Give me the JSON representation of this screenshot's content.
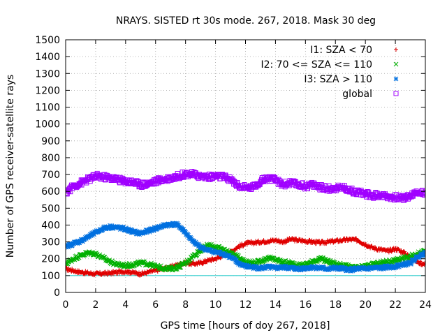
{
  "chart_data": {
    "type": "scatter",
    "title": "NRAYS. SISTED rt 30s mode. 267, 2018. Mask 30 deg",
    "xlabel": "GPS time [hours of doy 267, 2018]",
    "ylabel": "Number of GPS receiver-satellite rays",
    "xlim": [
      0,
      24
    ],
    "ylim": [
      0,
      1500
    ],
    "x_ticks": [
      "0",
      "2",
      "4",
      "6",
      "8",
      "10",
      "12",
      "14",
      "16",
      "18",
      "20",
      "22",
      "24"
    ],
    "y_ticks": [
      "0",
      "100",
      "200",
      "300",
      "400",
      "500",
      "600",
      "700",
      "800",
      "900",
      "1000",
      "1100",
      "1200",
      "1300",
      "1400",
      "1500"
    ],
    "grid": true,
    "legend_position": "top-right",
    "reference_line": {
      "y": 100,
      "color": "#00c0c0"
    },
    "series": [
      {
        "name": "I1: SZA < 70",
        "marker": "+",
        "color": "#e00000",
        "x": [
          0,
          0.5,
          1,
          1.5,
          2,
          2.5,
          3,
          3.5,
          4,
          4.5,
          5,
          5.5,
          6,
          6.5,
          7,
          7.5,
          8,
          8.5,
          9,
          9.5,
          10,
          10.5,
          11,
          11.5,
          12,
          12.5,
          13,
          13.5,
          14,
          14.5,
          15,
          15.5,
          16,
          16.5,
          17,
          17.5,
          18,
          18.5,
          19,
          19.5,
          20,
          20.5,
          21,
          21.5,
          22,
          22.5,
          23,
          23.5,
          24
        ],
        "y": [
          140,
          130,
          120,
          115,
          110,
          112,
          115,
          120,
          125,
          118,
          110,
          120,
          130,
          140,
          150,
          165,
          175,
          170,
          175,
          190,
          200,
          220,
          240,
          270,
          290,
          295,
          300,
          305,
          310,
          300,
          315,
          310,
          305,
          300,
          295,
          300,
          305,
          310,
          315,
          310,
          285,
          265,
          255,
          245,
          260,
          240,
          210,
          180,
          165
        ]
      },
      {
        "name": "I2: 70 <= SZA <= 110",
        "marker": "x",
        "color": "#00b000",
        "x": [
          0,
          0.5,
          1,
          1.5,
          2,
          2.5,
          3,
          3.5,
          4,
          4.5,
          5,
          5.5,
          6,
          6.5,
          7,
          7.5,
          8,
          8.5,
          9,
          9.5,
          10,
          10.5,
          11,
          11.5,
          12,
          12.5,
          13,
          13.5,
          14,
          14.5,
          15,
          15.5,
          16,
          16.5,
          17,
          17.5,
          18,
          18.5,
          19,
          19.5,
          20,
          20.5,
          21,
          21.5,
          22,
          22.5,
          23,
          23.5,
          24
        ],
        "y": [
          170,
          200,
          220,
          235,
          230,
          205,
          180,
          165,
          160,
          165,
          175,
          170,
          155,
          145,
          140,
          150,
          175,
          215,
          250,
          280,
          270,
          255,
          235,
          210,
          185,
          175,
          185,
          205,
          195,
          180,
          175,
          160,
          165,
          185,
          200,
          185,
          170,
          160,
          150,
          145,
          155,
          165,
          175,
          185,
          190,
          200,
          215,
          230,
          245
        ]
      },
      {
        "name": "I3: SZA > 110",
        "marker": "*",
        "color": "#0070e0",
        "x": [
          0,
          0.5,
          1,
          1.5,
          2,
          2.5,
          3,
          3.5,
          4,
          4.5,
          5,
          5.5,
          6,
          6.5,
          7,
          7.5,
          8,
          8.5,
          9,
          9.5,
          10,
          10.5,
          11,
          11.5,
          12,
          12.5,
          13,
          13.5,
          14,
          14.5,
          15,
          15.5,
          16,
          16.5,
          17,
          17.5,
          18,
          18.5,
          19,
          19.5,
          20,
          20.5,
          21,
          21.5,
          22,
          22.5,
          23,
          23.5,
          24
        ],
        "y": [
          270,
          290,
          305,
          330,
          355,
          380,
          390,
          385,
          375,
          360,
          350,
          365,
          380,
          395,
          405,
          400,
          355,
          300,
          270,
          250,
          240,
          230,
          210,
          175,
          155,
          150,
          145,
          150,
          145,
          150,
          145,
          140,
          145,
          150,
          145,
          140,
          145,
          140,
          135,
          140,
          140,
          145,
          145,
          150,
          155,
          165,
          175,
          210,
          240
        ]
      },
      {
        "name": "global",
        "marker": "open-square",
        "color": "#a000ff",
        "x": [
          0,
          0.5,
          1,
          1.5,
          2,
          2.5,
          3,
          3.5,
          4,
          4.5,
          5,
          5.5,
          6,
          6.5,
          7,
          7.5,
          8,
          8.5,
          9,
          9.5,
          10,
          10.5,
          11,
          11.5,
          12,
          12.5,
          13,
          13.5,
          14,
          14.5,
          15,
          15.5,
          16,
          16.5,
          17,
          17.5,
          18,
          18.5,
          19,
          19.5,
          20,
          20.5,
          21,
          21.5,
          22,
          22.5,
          23,
          23.5,
          24
        ],
        "y": [
          590,
          630,
          650,
          670,
          690,
          685,
          680,
          670,
          660,
          655,
          640,
          645,
          660,
          670,
          680,
          690,
          705,
          700,
          690,
          685,
          690,
          685,
          670,
          635,
          620,
          625,
          660,
          680,
          665,
          640,
          650,
          640,
          630,
          640,
          625,
          615,
          620,
          625,
          605,
          595,
          585,
          575,
          580,
          570,
          565,
          560,
          575,
          595,
          595
        ]
      }
    ]
  }
}
